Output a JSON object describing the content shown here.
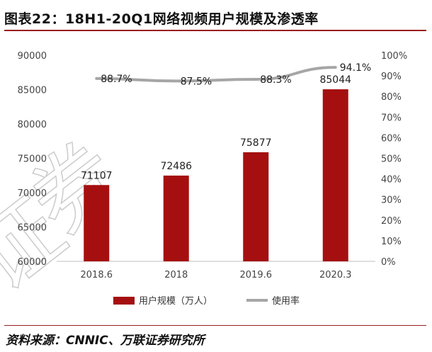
{
  "header": {
    "title": "图表22：18H1-20Q1网络视频用户规模及渗透率"
  },
  "footer": {
    "source": "资料来源：CNNIC、万联证券研究所"
  },
  "watermark": {
    "text": "证券"
  },
  "colors": {
    "bar": "#a50f0f",
    "line": "#a6a6a6",
    "accent_rule": "#9a1d1d"
  },
  "chart_data": {
    "type": "bar",
    "categories": [
      "2018.6",
      "2018",
      "2019.6",
      "2020.3"
    ],
    "series": [
      {
        "name": "用户规模（万人）",
        "type": "bar",
        "axis": "left",
        "values": [
          71107,
          72486,
          75877,
          85044
        ],
        "labels": [
          "71107",
          "72486",
          "75877",
          "85044"
        ]
      },
      {
        "name": "使用率",
        "type": "line",
        "axis": "right",
        "values": [
          88.7,
          87.5,
          88.3,
          94.1
        ],
        "labels": [
          "88.7%",
          "87.5%",
          "88.3%",
          "94.1%"
        ]
      }
    ],
    "ylim": [
      60000,
      90000
    ],
    "yticks": [
      "60000",
      "65000",
      "70000",
      "75000",
      "80000",
      "85000",
      "90000"
    ],
    "y2lim": [
      0,
      100
    ],
    "y2ticks": [
      "0%",
      "10%",
      "20%",
      "30%",
      "40%",
      "50%",
      "60%",
      "70%",
      "80%",
      "90%",
      "100%"
    ],
    "legend_position": "bottom",
    "grid": false
  }
}
